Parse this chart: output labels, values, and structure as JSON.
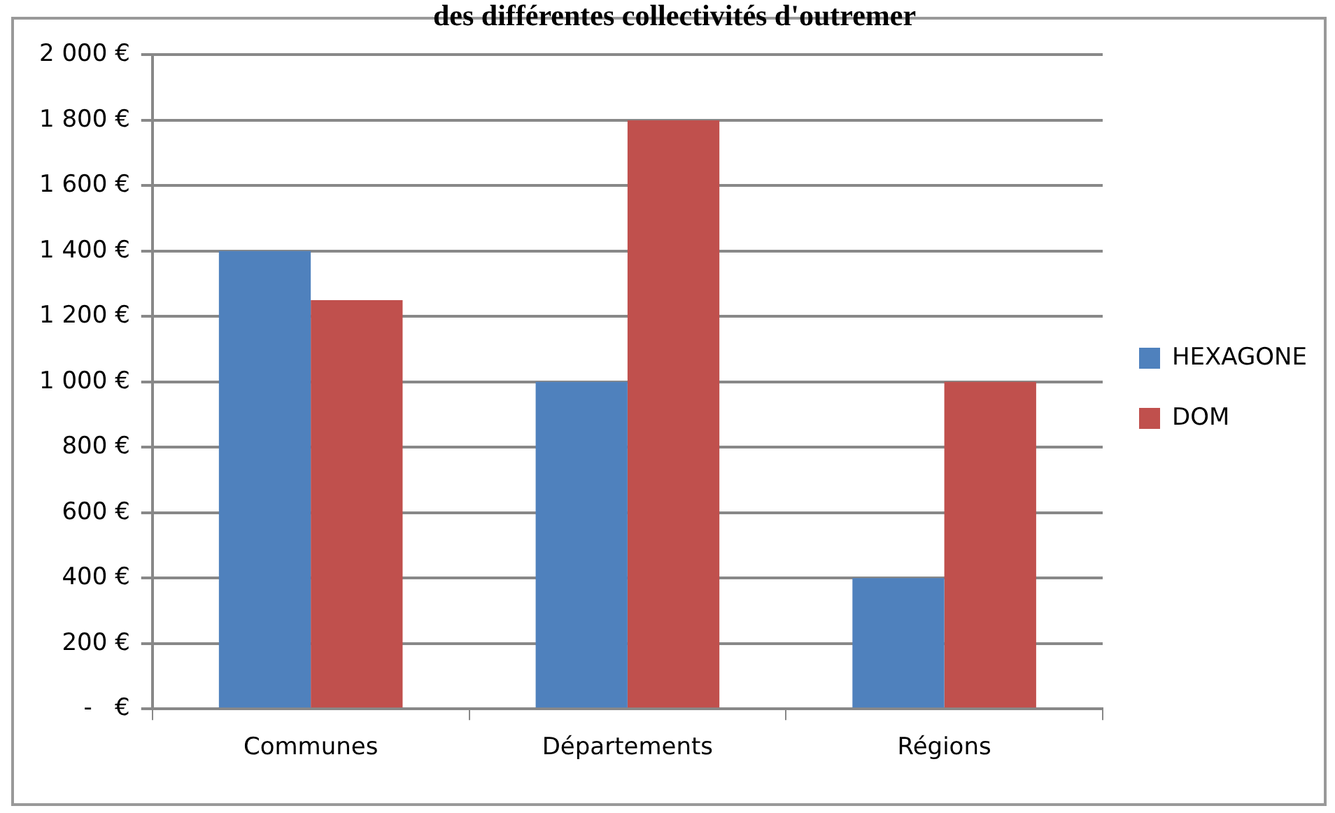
{
  "chart_data": {
    "type": "bar",
    "title": "des différentes collectivités d'outremer",
    "categories": [
      "Communes",
      "Départements",
      "Régions"
    ],
    "series": [
      {
        "name": "HEXAGONE",
        "color": "#4f81bd",
        "values": [
          1400,
          1000,
          400
        ]
      },
      {
        "name": "DOM",
        "color": "#c0504d",
        "values": [
          1250,
          1800,
          1000
        ]
      }
    ],
    "ylim": [
      0,
      2000
    ],
    "yticks": [
      {
        "value": 0,
        "label": "-   €"
      },
      {
        "value": 200,
        "label": "200 €"
      },
      {
        "value": 400,
        "label": "400 €"
      },
      {
        "value": 600,
        "label": "600 €"
      },
      {
        "value": 800,
        "label": "800 €"
      },
      {
        "value": 1000,
        "label": "1 000 €"
      },
      {
        "value": 1200,
        "label": "1 200 €"
      },
      {
        "value": 1400,
        "label": "1 400 €"
      },
      {
        "value": 1600,
        "label": "1 600 €"
      },
      {
        "value": 1800,
        "label": "1 800 €"
      },
      {
        "value": 2000,
        "label": "2 000 €"
      }
    ],
    "grid": "y",
    "legend": "right"
  }
}
